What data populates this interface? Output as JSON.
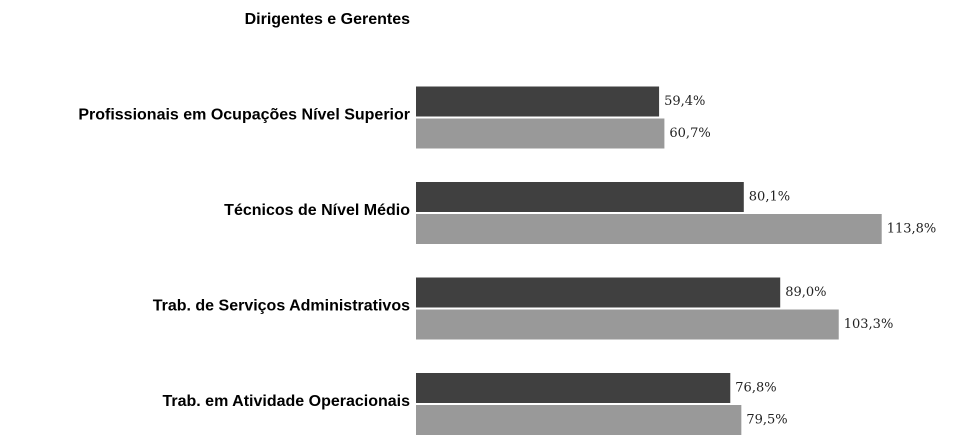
{
  "chart_data": {
    "type": "hbar",
    "categories": [
      "Dirigentes e Gerentes",
      "Profissionais em Ocupações Nível Superior",
      "Técnicos de Nível Médio",
      "Trab. de Serviços Administrativos",
      "Trab. em Atividade Operacionais"
    ],
    "series": [
      {
        "color": "#404040",
        "values": [
          null,
          59.4,
          80.1,
          89.0,
          76.8
        ],
        "value_labels": [
          null,
          "59,4%",
          "80,1%",
          "89,0%",
          "76,8%"
        ]
      },
      {
        "color": "#999999",
        "values": [
          null,
          60.7,
          113.8,
          103.3,
          79.5
        ],
        "value_labels": [
          null,
          "60,7%",
          "113,8%",
          "103,3%",
          "79,5%"
        ]
      }
    ],
    "xlim": [
      0,
      130
    ]
  }
}
